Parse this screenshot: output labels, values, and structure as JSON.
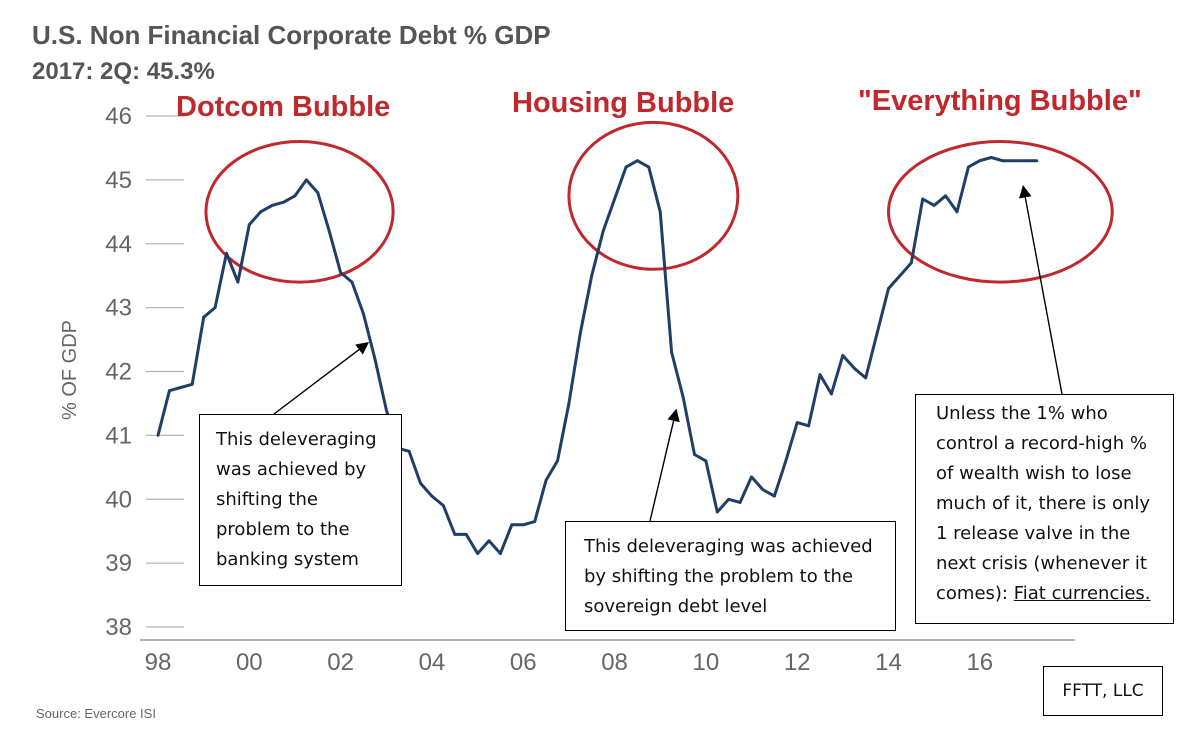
{
  "chart_data": {
    "type": "line",
    "title": "U.S. Non Financial Corporate Debt % GDP",
    "subtitle": "2017: 2Q: 45.3%",
    "ylabel": "% OF GDP",
    "xlabel": "",
    "ylim": [
      38,
      46
    ],
    "yticks": [
      38,
      39,
      40,
      41,
      42,
      43,
      44,
      45,
      46
    ],
    "xlim": [
      1998,
      2017.8
    ],
    "xticks": [
      1998,
      2000,
      2002,
      2004,
      2006,
      2008,
      2010,
      2012,
      2014,
      2016
    ],
    "xtick_labels": [
      "98",
      "00",
      "02",
      "04",
      "06",
      "08",
      "10",
      "12",
      "14",
      "16"
    ],
    "grid": false,
    "line_color": "#1f3f66",
    "series": [
      {
        "name": "",
        "x": [
          1998.0,
          1998.25,
          1998.5,
          1998.75,
          1999.0,
          1999.25,
          1999.5,
          1999.75,
          2000.0,
          2000.25,
          2000.5,
          2000.75,
          2001.0,
          2001.25,
          2001.5,
          2001.75,
          2002.0,
          2002.25,
          2002.5,
          2002.75,
          2003.0,
          2003.25,
          2003.5,
          2003.75,
          2004.0,
          2004.25,
          2004.5,
          2004.75,
          2005.0,
          2005.25,
          2005.5,
          2005.75,
          2006.0,
          2006.25,
          2006.5,
          2006.75,
          2007.0,
          2007.25,
          2007.5,
          2007.75,
          2008.0,
          2008.25,
          2008.5,
          2008.75,
          2009.0,
          2009.25,
          2009.5,
          2009.75,
          2010.0,
          2010.25,
          2010.5,
          2010.75,
          2011.0,
          2011.25,
          2011.5,
          2011.75,
          2012.0,
          2012.25,
          2012.5,
          2012.75,
          2013.0,
          2013.25,
          2013.5,
          2013.75,
          2014.0,
          2014.25,
          2014.5,
          2014.75,
          2015.0,
          2015.25,
          2015.5,
          2015.75,
          2016.0,
          2016.25,
          2016.5,
          2016.75,
          2017.0,
          2017.25
        ],
        "values": [
          41.0,
          41.7,
          41.75,
          41.8,
          42.85,
          43.0,
          43.85,
          43.4,
          44.3,
          44.5,
          44.6,
          44.65,
          44.75,
          45.0,
          44.8,
          44.2,
          43.55,
          43.4,
          42.9,
          42.2,
          41.4,
          40.8,
          40.75,
          40.25,
          40.05,
          39.9,
          39.45,
          39.45,
          39.15,
          39.35,
          39.15,
          39.6,
          39.6,
          39.65,
          40.3,
          40.6,
          41.5,
          42.6,
          43.5,
          44.2,
          44.7,
          45.2,
          45.3,
          45.2,
          44.5,
          42.3,
          41.6,
          40.7,
          40.6,
          39.8,
          40.0,
          39.95,
          40.35,
          40.15,
          40.05,
          40.6,
          41.2,
          41.15,
          41.95,
          41.65,
          42.25,
          42.05,
          41.9,
          42.6,
          43.3,
          43.5,
          43.7,
          44.7,
          44.6,
          44.75,
          44.5,
          45.2,
          45.3,
          45.35,
          45.3,
          45.3,
          45.3,
          45.3
        ]
      }
    ],
    "highlight_circles": [
      {
        "label": "Dotcom Bubble",
        "center_x": 2001.1,
        "center_y": 44.5,
        "rx_years": 2.05,
        "ry_pct": 1.1
      },
      {
        "label": "Housing Bubble",
        "center_x": 2008.85,
        "center_y": 44.75,
        "rx_years": 1.85,
        "ry_pct": 1.15
      },
      {
        "label": "\"Everything Bubble\"",
        "center_x": 2016.45,
        "center_y": 44.5,
        "rx_years": 2.45,
        "ry_pct": 1.1
      }
    ],
    "annotations": [
      {
        "lines": [
          "This deleveraging",
          "was achieved by",
          "shifting the",
          "problem to the",
          "banking system"
        ],
        "arrow_to_x": 2002.6,
        "arrow_to_y": 42.45
      },
      {
        "lines": [
          "This deleveraging was achieved",
          "by shifting the problem to the",
          "sovereign debt level"
        ],
        "arrow_to_x": 2009.35,
        "arrow_to_y": 41.4
      },
      {
        "lines": [
          "Unless the 1% who",
          "control a record-high %",
          "of wealth wish to lose",
          "much of it, there is only",
          "1 release valve in the",
          "next crisis (whenever it",
          "comes): "
        ],
        "underlined": "Fiat currencies.",
        "arrow_to_x": 2016.95,
        "arrow_to_y": 44.9
      }
    ],
    "source": "Source: Evercore ISI",
    "credit": "FFTT, LLC"
  }
}
